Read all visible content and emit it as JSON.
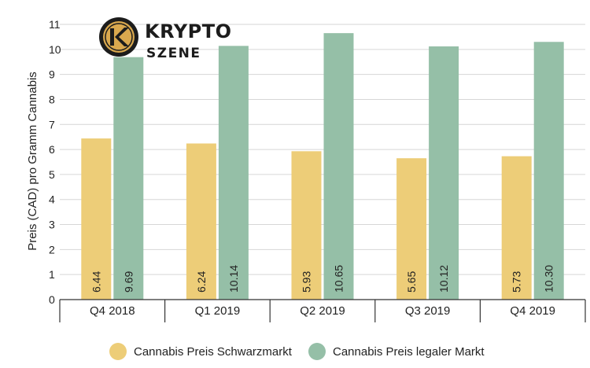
{
  "brand": {
    "name_line1": "KRYPTO",
    "name_line2": "SZENE",
    "emblem_letter": "K",
    "emblem_icon": "k-coin-icon"
  },
  "colors": {
    "black_market": "#edcd78",
    "legal_market": "#95bfa7",
    "grid": "#d6d6d6",
    "axis": "#333333",
    "text": "#222222",
    "logo_gold": "#d9a84e",
    "logo_dark": "#1c1c1c"
  },
  "chart_data": {
    "type": "bar",
    "categories": [
      "Q4 2018",
      "Q1 2019",
      "Q2 2019",
      "Q3 2019",
      "Q4 2019"
    ],
    "ylabel": "Preis (CAD) pro Gramm Cannabis",
    "ylim": [
      0,
      11
    ],
    "yticks": [
      0,
      1,
      2,
      3,
      4,
      5,
      6,
      7,
      8,
      9,
      10,
      11
    ],
    "grid": true,
    "legend_position": "bottom",
    "series": [
      {
        "name": "Cannabis Preis Schwarzmarkt",
        "values": [
          6.44,
          6.24,
          5.93,
          5.65,
          5.73
        ],
        "labels": [
          "6.44",
          "6.24",
          "5.93",
          "5.65",
          "5.73"
        ]
      },
      {
        "name": "Cannabis Preis legaler Markt",
        "values": [
          9.69,
          10.14,
          10.65,
          10.12,
          10.3
        ],
        "labels": [
          "9.69",
          "10.14",
          "10.65",
          "10.12",
          "10.30"
        ]
      }
    ]
  }
}
